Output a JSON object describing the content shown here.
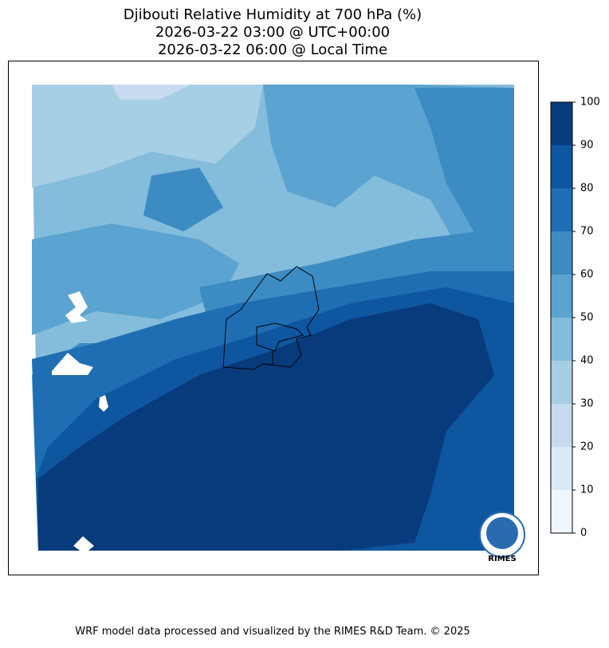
{
  "title": [
    "Djibouti Relative Humidity at 700 hPa (%)",
    "2026-03-22 03:00 @ UTC+00:00",
    "2026-03-22 06:00 @ Local Time"
  ],
  "colorbar": {
    "ticks": [
      0,
      10,
      20,
      30,
      40,
      50,
      60,
      70,
      80,
      90,
      100
    ],
    "colors": [
      "#f0f6fd",
      "#dbe9f6",
      "#c6dbef",
      "#a6cee4",
      "#84bcdb",
      "#5ba3d0",
      "#3d8bc3",
      "#1f6eb3",
      "#0e56a0",
      "#083b7c"
    ]
  },
  "logo": "RIMES",
  "footer": "WRF model data processed and visualized by the RIMES R&D Team. © 2025"
}
